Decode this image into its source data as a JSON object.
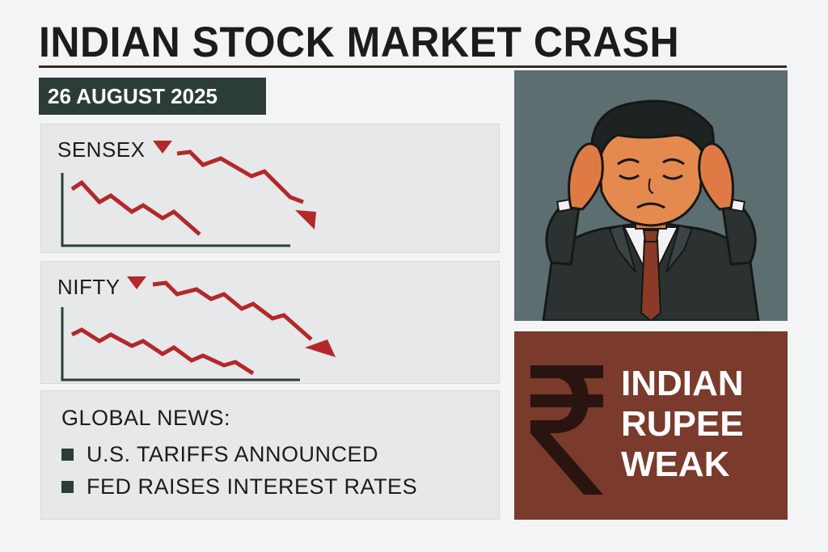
{
  "header": {
    "title": "INDIAN STOCK MARKET CRASH",
    "date": "26 AUGUST 2025"
  },
  "indices": [
    {
      "name": "SENSEX",
      "trend": "down"
    },
    {
      "name": "NIFTY",
      "trend": "down"
    }
  ],
  "news": {
    "heading": "GLOBAL NEWS:",
    "items": [
      "U.S. TARIFFS ANNOUNCED",
      "FED RAISES INTEREST RATES"
    ]
  },
  "rupee": {
    "symbol_icon": "rupee-sign-icon",
    "lines": [
      "INDIAN",
      "RUPEE",
      "WEAK"
    ]
  },
  "colors": {
    "title": "#1b1d1c",
    "badge": "#2c3d38",
    "down_arrow": "#b3282a",
    "rupee_panel": "#7a3a2c",
    "illustration_bg": "#5d6e70"
  }
}
